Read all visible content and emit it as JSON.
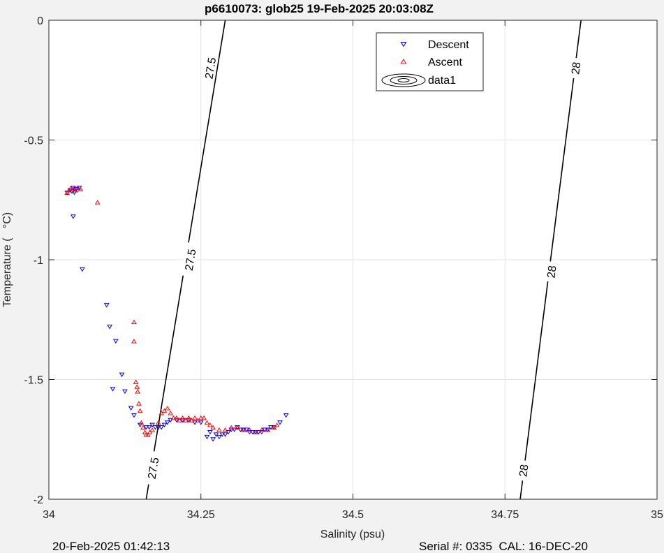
{
  "chart_data": {
    "type": "scatter",
    "title": "p6610073: glob25 19-Feb-2025 20:03:08Z",
    "xlabel": "Salinity (psu)",
    "ylabel": "Temperature (   °C)",
    "xlim": [
      34,
      35
    ],
    "ylim": [
      -2,
      0
    ],
    "xticks": [
      34,
      34.25,
      34.5,
      34.75,
      35
    ],
    "xtick_labels": [
      "34",
      "34.25",
      "34.5",
      "34.75",
      "35"
    ],
    "yticks": [
      0,
      -0.5,
      -1,
      -1.5,
      -2
    ],
    "ytick_labels": [
      "0",
      "-0.5",
      "-1",
      "-1.5",
      "-2"
    ],
    "grid": true,
    "legend_location": "top-right",
    "legend": [
      {
        "label": "Descent",
        "marker": "triangle-down",
        "color": "#0000ff"
      },
      {
        "label": "Ascent",
        "marker": "triangle-up",
        "color": "#ff0000"
      },
      {
        "label": "data1",
        "marker": "contour-ellipses",
        "color": "#000000"
      }
    ],
    "series": [
      {
        "name": "Descent",
        "color": "#0000ff",
        "marker": "triangle-down",
        "x": [
          34.03,
          34.035,
          34.04,
          34.045,
          34.038,
          34.042,
          34.05,
          34.04,
          34.055,
          34.095,
          34.1,
          34.11,
          34.12,
          34.105,
          34.125,
          34.135,
          34.14,
          34.15,
          34.16,
          34.165,
          34.17,
          34.175,
          34.18,
          34.185,
          34.19,
          34.195,
          34.2,
          34.21,
          34.22,
          34.23,
          34.24,
          34.25,
          34.26,
          34.27,
          34.28,
          34.29,
          34.3,
          34.31,
          34.32,
          34.33,
          34.34,
          34.35,
          34.36,
          34.37,
          34.38,
          34.39,
          34.265,
          34.275,
          34.285,
          34.295,
          34.305,
          34.315,
          34.325,
          34.335,
          34.345,
          34.355,
          34.365
        ],
        "y": [
          -0.72,
          -0.71,
          -0.7,
          -0.705,
          -0.715,
          -0.72,
          -0.7,
          -0.82,
          -1.04,
          -1.19,
          -1.28,
          -1.34,
          -1.48,
          -1.54,
          -1.55,
          -1.62,
          -1.65,
          -1.69,
          -1.7,
          -1.7,
          -1.69,
          -1.7,
          -1.7,
          -1.7,
          -1.69,
          -1.68,
          -1.67,
          -1.67,
          -1.67,
          -1.67,
          -1.68,
          -1.68,
          -1.74,
          -1.75,
          -1.74,
          -1.73,
          -1.71,
          -1.7,
          -1.71,
          -1.72,
          -1.72,
          -1.72,
          -1.71,
          -1.7,
          -1.68,
          -1.65,
          -1.72,
          -1.73,
          -1.73,
          -1.72,
          -1.71,
          -1.71,
          -1.71,
          -1.72,
          -1.72,
          -1.71,
          -1.7
        ]
      },
      {
        "name": "Ascent",
        "color": "#ff0000",
        "marker": "triangle-up",
        "x": [
          34.03,
          34.033,
          34.036,
          34.04,
          34.044,
          34.048,
          34.052,
          34.08,
          34.14,
          34.14,
          34.143,
          34.145,
          34.146,
          34.148,
          34.15,
          34.152,
          34.155,
          34.158,
          34.16,
          34.163,
          34.166,
          34.17,
          34.18,
          34.185,
          34.19,
          34.195,
          34.2,
          34.205,
          34.21,
          34.215,
          34.22,
          34.225,
          34.23,
          34.235,
          34.24,
          34.245,
          34.25,
          34.255,
          34.26,
          34.265,
          34.27,
          34.28,
          34.29,
          34.3,
          34.31,
          34.32,
          34.33,
          34.34,
          34.35,
          34.36,
          34.37,
          34.375
        ],
        "y": [
          -0.72,
          -0.71,
          -0.7,
          -0.705,
          -0.71,
          -0.7,
          -0.705,
          -0.76,
          -1.26,
          -1.34,
          -1.51,
          -1.53,
          -1.55,
          -1.6,
          -1.63,
          -1.68,
          -1.7,
          -1.72,
          -1.73,
          -1.73,
          -1.72,
          -1.71,
          -1.68,
          -1.64,
          -1.63,
          -1.62,
          -1.64,
          -1.66,
          -1.66,
          -1.67,
          -1.66,
          -1.67,
          -1.66,
          -1.67,
          -1.66,
          -1.67,
          -1.66,
          -1.66,
          -1.68,
          -1.69,
          -1.7,
          -1.71,
          -1.71,
          -1.7,
          -1.7,
          -1.71,
          -1.71,
          -1.72,
          -1.71,
          -1.71,
          -1.7,
          -1.69
        ]
      }
    ],
    "contours": [
      {
        "level": 27.5,
        "label": "27.5",
        "points": [
          [
            34.16,
            -2
          ],
          [
            34.29,
            0
          ]
        ]
      },
      {
        "level": 28,
        "label": "28",
        "points": [
          [
            34.775,
            -2
          ],
          [
            34.875,
            0
          ]
        ]
      }
    ],
    "contour_labels": [
      {
        "text": "27.5",
        "x": 34.265,
        "y": -0.2
      },
      {
        "text": "27.5",
        "x": 34.232,
        "y": -1.0
      },
      {
        "text": "27.5",
        "x": 34.171,
        "y": -1.87
      },
      {
        "text": "28",
        "x": 34.866,
        "y": -0.2
      },
      {
        "text": "28",
        "x": 34.826,
        "y": -1.05
      },
      {
        "text": "28",
        "x": 34.78,
        "y": -1.88
      }
    ]
  },
  "footer": {
    "left": "20-Feb-2025 01:42:13",
    "right": "Serial #: 0335  CAL: 16-DEC-20"
  }
}
